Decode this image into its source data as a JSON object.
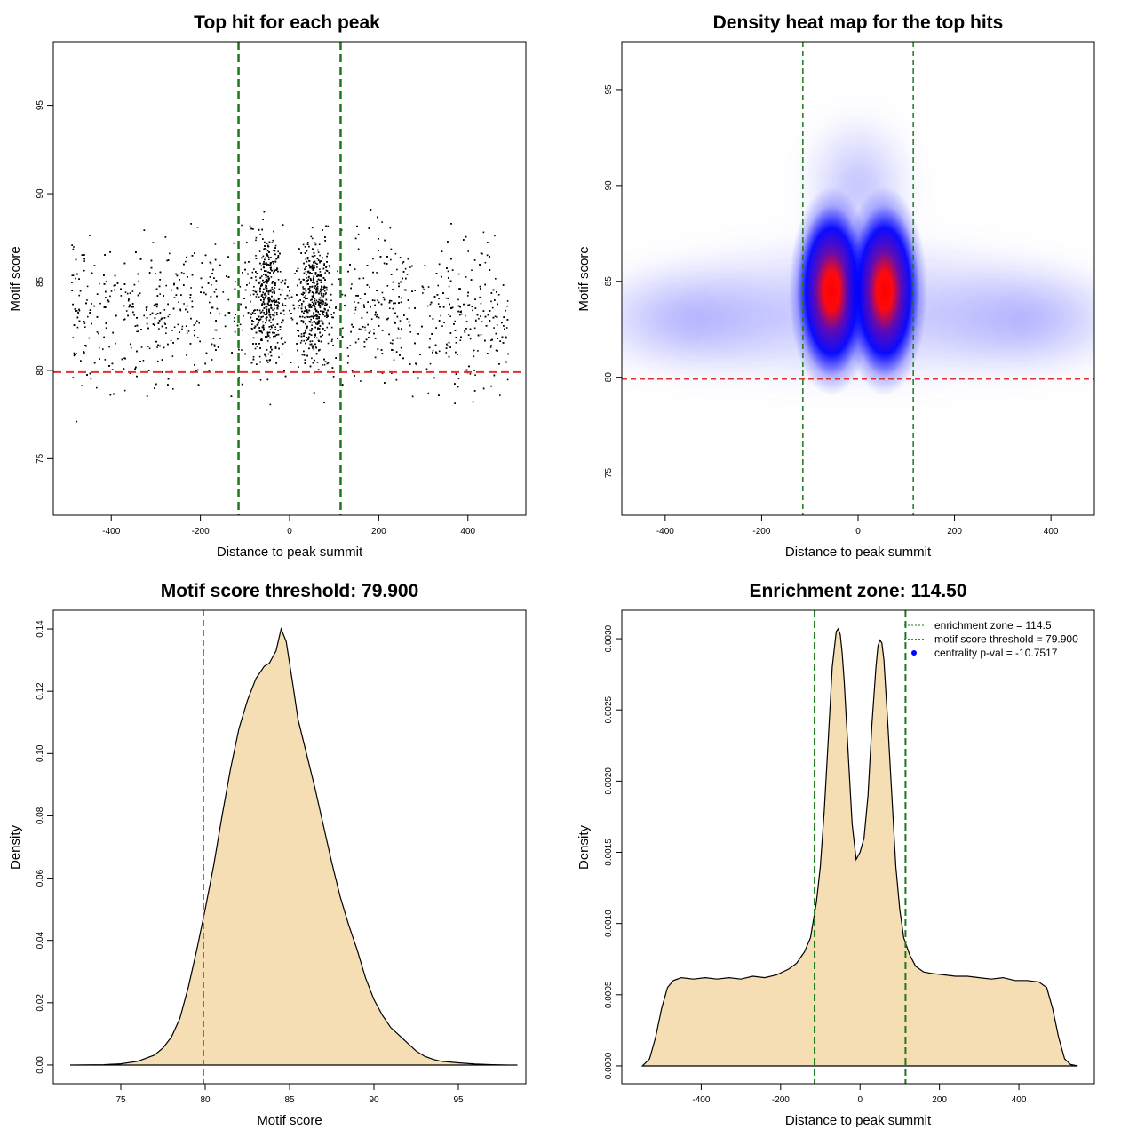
{
  "colors": {
    "threshold_line": "#e03030",
    "zone_line": "#1a7a1a",
    "fill": "#f5deb3",
    "points": "#000000",
    "heat_low": "#ffffff",
    "heat_mid": "#0000ff",
    "heat_high": "#ff0000",
    "legend_dot": "#0000ff"
  },
  "chart_data": [
    {
      "id": "scatter",
      "type": "scatter",
      "title": "Top hit for each peak",
      "xlabel": "Distance to peak summit",
      "ylabel": "Motif score",
      "xlim": [
        -530,
        530
      ],
      "ylim": [
        71.8,
        98.6
      ],
      "xticks": [
        "-400",
        "-200",
        "0",
        "200",
        "400"
      ],
      "yticks": [
        "75",
        "80",
        "85",
        "90",
        "95"
      ],
      "hlines": [
        79.9
      ],
      "vlines": [
        -114.5,
        114.5
      ],
      "point_count": 4000,
      "distribution": "x in [-490, 490] with two dense clusters at -50 and +55; y mostly 76-92 centred near 83-84"
    },
    {
      "id": "heatmap",
      "type": "heatmap",
      "title": "Density heat map for the top hits",
      "xlabel": "Distance to peak summit",
      "ylabel": "Motif score",
      "xlim": [
        -490,
        490
      ],
      "ylim": [
        72.8,
        97.5
      ],
      "xticks": [
        "-400",
        "-200",
        "0",
        "200",
        "400"
      ],
      "yticks": [
        "75",
        "80",
        "85",
        "90",
        "95"
      ],
      "hlines": [
        79.9
      ],
      "vlines": [
        -114.5,
        114.5
      ],
      "hotspots": [
        {
          "x": -55,
          "y": 84.5,
          "intensity": 1.0
        },
        {
          "x": 55,
          "y": 84.5,
          "intensity": 1.0
        }
      ]
    },
    {
      "id": "score_density",
      "type": "area",
      "title": "Motif score threshold: 79.900",
      "xlabel": "Motif score",
      "ylabel": "Density",
      "xlim": [
        71,
        99
      ],
      "ylim": [
        -0.006,
        0.146
      ],
      "xticks": [
        "75",
        "80",
        "85",
        "90",
        "95"
      ],
      "yticks": [
        "0.00",
        "0.02",
        "0.04",
        "0.06",
        "0.08",
        "0.10",
        "0.12",
        "0.14"
      ],
      "vlines": [
        79.9
      ],
      "x": [
        72,
        74,
        75,
        76,
        77,
        77.5,
        78,
        78.5,
        79,
        79.5,
        80,
        80.5,
        81,
        81.5,
        82,
        82.5,
        83,
        83.5,
        83.8,
        84.2,
        84.5,
        84.8,
        85.2,
        85.5,
        86,
        86.5,
        87,
        87.5,
        88,
        88.5,
        89,
        89.5,
        90,
        90.5,
        91,
        91.5,
        92,
        92.5,
        93,
        93.5,
        94,
        95,
        96,
        97,
        98,
        98.5
      ],
      "y": [
        0.0,
        0.0001,
        0.0004,
        0.0012,
        0.0032,
        0.0055,
        0.009,
        0.015,
        0.025,
        0.037,
        0.05,
        0.064,
        0.08,
        0.095,
        0.108,
        0.117,
        0.124,
        0.128,
        0.129,
        0.133,
        0.14,
        0.136,
        0.122,
        0.111,
        0.1,
        0.089,
        0.077,
        0.065,
        0.054,
        0.045,
        0.037,
        0.028,
        0.021,
        0.016,
        0.012,
        0.0095,
        0.007,
        0.0045,
        0.0028,
        0.0018,
        0.0012,
        0.0007,
        0.0003,
        0.0001,
        0.0,
        0.0
      ]
    },
    {
      "id": "distance_density",
      "type": "area",
      "title": "Enrichment zone: 114.50",
      "xlabel": "Distance to peak summit",
      "ylabel": "Density",
      "xlim": [
        -600,
        590
      ],
      "ylim": [
        -0.000125,
        0.0032
      ],
      "xticks": [
        "-400",
        "-200",
        "0",
        "200",
        "400"
      ],
      "yticks": [
        "0.0000",
        "0.0005",
        "0.0010",
        "0.0015",
        "0.0020",
        "0.0025",
        "0.0030"
      ],
      "vlines": [
        -114.5,
        114.5
      ],
      "x": [
        -548,
        -530,
        -515,
        -500,
        -485,
        -470,
        -450,
        -420,
        -390,
        -360,
        -330,
        -300,
        -270,
        -240,
        -210,
        -180,
        -160,
        -140,
        -125,
        -110,
        -100,
        -90,
        -80,
        -70,
        -60,
        -55,
        -50,
        -45,
        -40,
        -30,
        -20,
        -10,
        0,
        10,
        20,
        30,
        40,
        45,
        50,
        55,
        60,
        70,
        80,
        90,
        100,
        110,
        125,
        140,
        160,
        180,
        210,
        240,
        270,
        300,
        330,
        360,
        390,
        420,
        450,
        470,
        485,
        500,
        515,
        530,
        548
      ],
      "y": [
        0.0,
        5e-05,
        0.0002,
        0.0004,
        0.00055,
        0.0006,
        0.00062,
        0.00061,
        0.00062,
        0.00061,
        0.00062,
        0.00061,
        0.00063,
        0.00062,
        0.00064,
        0.00068,
        0.00072,
        0.0008,
        0.0009,
        0.00115,
        0.0014,
        0.0018,
        0.0023,
        0.0028,
        0.00305,
        0.00307,
        0.00303,
        0.0029,
        0.0027,
        0.0022,
        0.0017,
        0.00145,
        0.0015,
        0.0016,
        0.0019,
        0.0024,
        0.0028,
        0.00295,
        0.00299,
        0.00297,
        0.00285,
        0.0024,
        0.0019,
        0.0014,
        0.0011,
        0.0009,
        0.00078,
        0.0007,
        0.00066,
        0.00065,
        0.00064,
        0.00063,
        0.00063,
        0.00062,
        0.00061,
        0.00062,
        0.0006,
        0.0006,
        0.00059,
        0.00055,
        0.0004,
        0.0002,
        5e-05,
        1e-05,
        0.0
      ],
      "legend": [
        {
          "label": "enrichment zone = 114.5",
          "style": "zone_line"
        },
        {
          "label": "motif score threshold = 79.900",
          "style": "threshold_line"
        },
        {
          "label": "centrality p-val = -10.7517",
          "style": "dot"
        }
      ]
    }
  ]
}
